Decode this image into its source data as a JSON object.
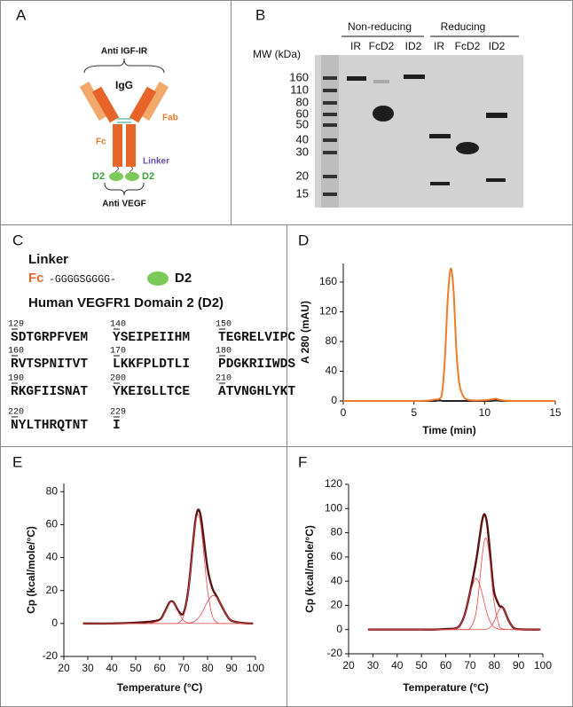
{
  "panel_letters": [
    "A",
    "B",
    "C",
    "D",
    "E",
    "F"
  ],
  "panel_a": {
    "top": "Anti IGF-IR",
    "igg": "IgG",
    "fab": "Fab",
    "fc": "Fc",
    "linker": "Linker",
    "d2_left": "D2",
    "d2_right": "D2",
    "bottom": "Anti VEGF"
  },
  "panel_b": {
    "mw_title": "MW (kDa)",
    "group_1": "Non-reducing",
    "group_2": "Reducing",
    "lanes": [
      "IR",
      "FcD2",
      "ID2",
      "IR",
      "FcD2",
      "ID2"
    ],
    "mw": [
      160,
      110,
      80,
      60,
      50,
      40,
      30,
      20,
      15
    ]
  },
  "panel_c": {
    "linker_title": "Linker",
    "fc": "Fc",
    "linker_seq": "-GGGGSGGGG-",
    "d2": "D2",
    "domain_title": "Human VEGFR1 Domain 2 (D2)",
    "residues": [
      {
        "start": 129,
        "text": "SDTGRPFVEM"
      },
      {
        "start": 140,
        "text": "YSEIPEIIHM"
      },
      {
        "start": 150,
        "text": "TEGRELVIPC"
      },
      {
        "start": 160,
        "text": "RVTSPNITVT"
      },
      {
        "start": 170,
        "text": "LKKFPLDTLI"
      },
      {
        "start": 180,
        "text": "PDGKRIIWDS"
      },
      {
        "start": 190,
        "text": "RKGFIISNAT"
      },
      {
        "start": 200,
        "text": "YKEIGLLTCE"
      },
      {
        "start": 210,
        "text": "ATVNGHLYKT"
      },
      {
        "start": 220,
        "text": "NYLTHRQTNT"
      },
      {
        "start": 229,
        "text": "I"
      }
    ]
  },
  "chart_data": [
    {
      "type": "line",
      "xlabel": "Time (min)",
      "ylabel": "A 280 (mAU)",
      "x": [
        0,
        2,
        4,
        5,
        6,
        6.5,
        6.8,
        7,
        7.2,
        7.4,
        7.6,
        7.8,
        8,
        8.2,
        8.5,
        9,
        10,
        10.5,
        10.8,
        11.2,
        12,
        15
      ],
      "series": [
        {
          "color": "#222222",
          "values": [
            0,
            0,
            0,
            0,
            0,
            0,
            1,
            0,
            0,
            0,
            0,
            0,
            0,
            0,
            0,
            0,
            0,
            0,
            1,
            0,
            0,
            0
          ]
        },
        {
          "color": "#f07c2a",
          "values": [
            0,
            0,
            0,
            0,
            0.5,
            2,
            3,
            12,
            60,
            140,
            178,
            150,
            70,
            25,
            6,
            1,
            1,
            2,
            3,
            1,
            0,
            0
          ]
        }
      ],
      "xlim": [
        0,
        15
      ],
      "ylim": [
        0,
        185
      ],
      "xticks": [
        0,
        5,
        10,
        15
      ],
      "yticks": [
        0,
        40,
        80,
        120,
        160
      ]
    },
    {
      "type": "line",
      "xlabel": "Temperature (°C)",
      "ylabel": "Cp (kcal/mole/°C)",
      "x": [
        28,
        40,
        50,
        55,
        60,
        62,
        64,
        65,
        66,
        68,
        70,
        72,
        74,
        75,
        76,
        77,
        78,
        80,
        82,
        84,
        86,
        88,
        90,
        95,
        99
      ],
      "series": [
        {
          "color": "#5a1414",
          "values": [
            0,
            0,
            0.5,
            1,
            2.3,
            6.8,
            12.5,
            13.5,
            12.5,
            7.3,
            6.4,
            20.8,
            49.9,
            63,
            69,
            66.3,
            56.4,
            33.5,
            21.4,
            16,
            10.3,
            5,
            1.7,
            0.2,
            0
          ]
        },
        {
          "color": "#e04848",
          "values": [
            0,
            0,
            0,
            0,
            1.8,
            6.3,
            12,
            13,
            12,
            6.3,
            1.8,
            0.3,
            0,
            0,
            0,
            0,
            0,
            0,
            0,
            0,
            0,
            0,
            0,
            0,
            0
          ]
        },
        {
          "color": "#e04848",
          "values": [
            0,
            0,
            0,
            0,
            0,
            0,
            0,
            0,
            0,
            0.5,
            4.6,
            20.3,
            49,
            61.3,
            66,
            61.3,
            49,
            20.3,
            4.6,
            0.5,
            0,
            0,
            0,
            0,
            0
          ]
        },
        {
          "color": "#e04848",
          "values": [
            0,
            0,
            0,
            0,
            0,
            0,
            0,
            0,
            0,
            0,
            0,
            0.2,
            0.9,
            1.7,
            3,
            5,
            7.4,
            13.2,
            16.8,
            15.5,
            10.3,
            5,
            1.7,
            0,
            0
          ]
        }
      ],
      "xlim": [
        20,
        100
      ],
      "ylim": [
        -20,
        85
      ],
      "xticks": [
        20,
        30,
        40,
        50,
        60,
        70,
        80,
        90,
        100
      ],
      "yticks": [
        -20,
        0,
        20,
        40,
        60,
        80
      ]
    },
    {
      "type": "line",
      "xlabel": "Temperature (°C)",
      "ylabel": "Cp (kcal/mole/°C)",
      "x": [
        28,
        40,
        50,
        55,
        60,
        64,
        66,
        68,
        70,
        72,
        73,
        74,
        75,
        76,
        77,
        78,
        79,
        80,
        82,
        83,
        84,
        86,
        88,
        90,
        95,
        99
      ],
      "series": [
        {
          "color": "#5a1414",
          "values": [
            0,
            0,
            0,
            0,
            0.5,
            1,
            4,
            13.6,
            30.7,
            50.8,
            62.8,
            76.8,
            90,
            95.3,
            88,
            69.5,
            47.2,
            30.4,
            20,
            19,
            16.6,
            7.1,
            1.4,
            0.3,
            0,
            0
          ]
        },
        {
          "color": "#e04848",
          "values": [
            0,
            0,
            0,
            0,
            0,
            0.8,
            4,
            13.6,
            29.7,
            41.4,
            41.4,
            37,
            29.7,
            21.3,
            13.6,
            7.8,
            4,
            1.9,
            0.3,
            0,
            0,
            0,
            0,
            0,
            0,
            0
          ]
        },
        {
          "color": "#e04848",
          "values": [
            0,
            0,
            0,
            0,
            0,
            0,
            0,
            0,
            1,
            9.4,
            21.4,
            39.8,
            60.3,
            74,
            74,
            60.3,
            39.8,
            21.4,
            3.4,
            1,
            0.3,
            0,
            0,
            0,
            0,
            0
          ]
        },
        {
          "color": "#e04848",
          "values": [
            0,
            0,
            0,
            0,
            0,
            0,
            0,
            0,
            0,
            0,
            0,
            0,
            0,
            0,
            0.4,
            1.4,
            3.4,
            7.1,
            16.3,
            18,
            16.3,
            7.1,
            1.4,
            0,
            0,
            0
          ]
        }
      ],
      "xlim": [
        20,
        100
      ],
      "ylim": [
        -20,
        120
      ],
      "xticks": [
        20,
        30,
        40,
        50,
        60,
        70,
        80,
        90,
        100
      ],
      "yticks": [
        -20,
        0,
        20,
        40,
        60,
        80,
        100,
        120
      ]
    }
  ]
}
